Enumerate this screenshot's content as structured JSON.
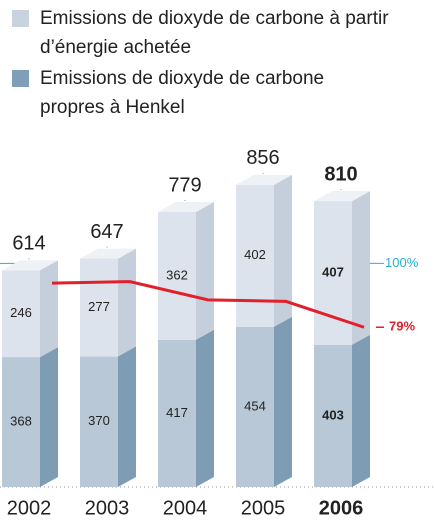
{
  "chart_data": {
    "type": "stacked-bar-3d",
    "categories": [
      "2002",
      "2003",
      "2004",
      "2005",
      "2006"
    ],
    "series": [
      {
        "name": "Emissions de dioxyde de carbone propres à Henkel",
        "color": "#b9c8d6",
        "values": [
          368,
          370,
          417,
          454,
          403
        ]
      },
      {
        "name": "Emissions de dioxyde de carbone à partir d’énergie achetée",
        "color": "#dde3ec",
        "values": [
          246,
          277,
          362,
          402,
          407
        ]
      }
    ],
    "totals": [
      614,
      647,
      779,
      856,
      810
    ],
    "ylim": [
      0,
      1000
    ],
    "line": {
      "color": "#e0202a",
      "values": [
        93.5,
        94,
        88,
        87.5,
        79
      ],
      "value_labels": [
        null,
        null,
        null,
        null,
        "79%"
      ],
      "axis": "y2"
    },
    "y2lim": [
      60,
      110
    ],
    "reference": {
      "value": 100,
      "label": "100%"
    },
    "legend": "top-left"
  }
}
